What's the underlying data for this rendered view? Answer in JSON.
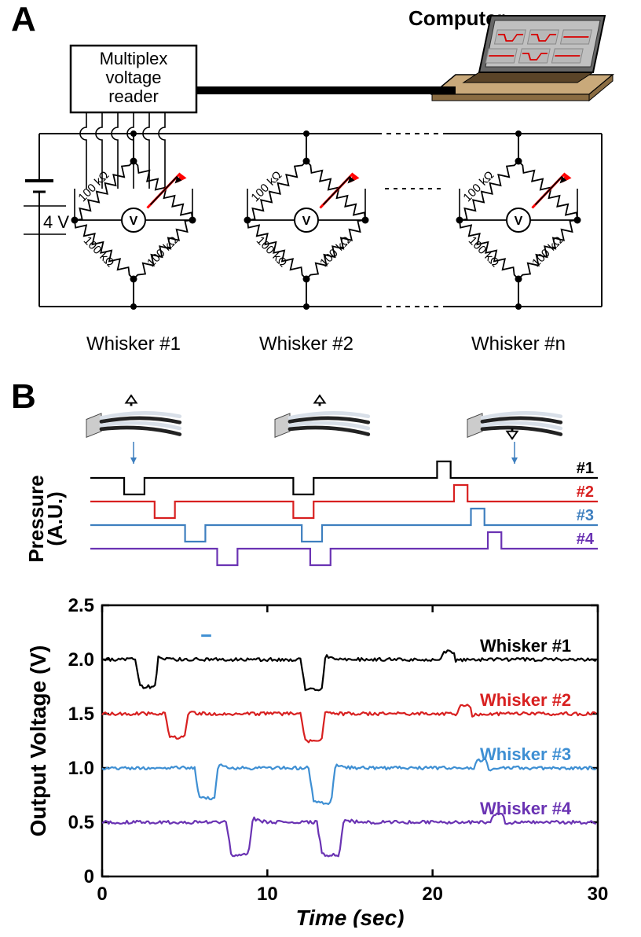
{
  "panelA": {
    "label": "A",
    "reader_label": "Multiplex\nvoltage\nreader",
    "computer_label": "Computer",
    "voltage_source": "4 V",
    "resistor_label": "100 kΩ",
    "voltmeter_label": "V",
    "whisker_labels": [
      "Whisker #1",
      "Whisker #2",
      "Whisker #n"
    ],
    "wire_color": "#000000",
    "arrow_color": "#ff0000",
    "laptop_body": "#c9a97a",
    "laptop_screen_bg": "#c0c0c0",
    "laptop_trace": "#d80000"
  },
  "panelB": {
    "label": "B",
    "pressure_ylabel": "Pressure\n(A.U.)",
    "pressure_series": [
      {
        "name": "#1",
        "color": "#000000",
        "baseline": 0,
        "events": [
          {
            "t": 2,
            "dir": -1,
            "dur": 1.2
          },
          {
            "t": 12,
            "dir": -1,
            "dur": 1.2
          },
          {
            "t": 20.5,
            "dir": 1,
            "dur": 0.8
          }
        ]
      },
      {
        "name": "#2",
        "color": "#d82020",
        "baseline": -1,
        "events": [
          {
            "t": 3.8,
            "dir": -1,
            "dur": 1.2
          },
          {
            "t": 12,
            "dir": -1,
            "dur": 1.2
          },
          {
            "t": 21.5,
            "dir": 1,
            "dur": 0.8
          }
        ]
      },
      {
        "name": "#3",
        "color": "#3e7fbf",
        "baseline": -2,
        "events": [
          {
            "t": 5.6,
            "dir": -1,
            "dur": 1.2
          },
          {
            "t": 12.5,
            "dir": -1,
            "dur": 1.2
          },
          {
            "t": 22.5,
            "dir": 1,
            "dur": 0.8
          }
        ]
      },
      {
        "name": "#4",
        "color": "#6a33b3",
        "baseline": -3,
        "events": [
          {
            "t": 7.5,
            "dir": -1,
            "dur": 1.2
          },
          {
            "t": 13,
            "dir": -1,
            "dur": 1.2
          },
          {
            "t": 23.5,
            "dir": 1,
            "dur": 0.8
          }
        ]
      }
    ],
    "pressure_pulse_height": 0.7,
    "voltage_chart": {
      "xlabel": "Time (sec)",
      "ylabel": "Output Voltage (V)",
      "xlim": [
        0,
        30
      ],
      "ylim": [
        0,
        2.5
      ],
      "xticks": [
        0,
        10,
        20,
        30
      ],
      "yticks": [
        0,
        0.5,
        1.0,
        1.5,
        2.0,
        2.5
      ],
      "ytick_labels": [
        "0",
        "0.5",
        "1.0",
        "1.5",
        "2.0",
        "2.5"
      ],
      "line_width": 2.2,
      "series": [
        {
          "name": "Whisker #1",
          "color": "#000000",
          "baseline": 2.0,
          "events": [
            {
              "t": 2,
              "dir": -1,
              "dur": 1.4,
              "depth": 0.25
            },
            {
              "t": 12,
              "dir": -1,
              "dur": 1.5,
              "depth": 0.28
            },
            {
              "t": 20.5,
              "dir": 1,
              "dur": 0.9,
              "depth": 0.12
            }
          ]
        },
        {
          "name": "Whisker #2",
          "color": "#d82020",
          "baseline": 1.5,
          "events": [
            {
              "t": 3.8,
              "dir": -1,
              "dur": 1.4,
              "depth": 0.22
            },
            {
              "t": 12,
              "dir": -1,
              "dur": 1.5,
              "depth": 0.25
            },
            {
              "t": 21.5,
              "dir": 1,
              "dur": 0.9,
              "depth": 0.12
            }
          ]
        },
        {
          "name": "Whisker #3",
          "color": "#3e8fd3",
          "baseline": 1.0,
          "events": [
            {
              "t": 5.6,
              "dir": -1,
              "dur": 1.4,
              "depth": 0.28
            },
            {
              "t": 12.5,
              "dir": -1,
              "dur": 1.6,
              "depth": 0.32
            },
            {
              "t": 22.5,
              "dir": 1,
              "dur": 0.9,
              "depth": 0.12
            }
          ]
        },
        {
          "name": "Whisker #4",
          "color": "#6a33b3",
          "baseline": 0.5,
          "events": [
            {
              "t": 7.5,
              "dir": -1,
              "dur": 1.6,
              "depth": 0.3
            },
            {
              "t": 13,
              "dir": -1,
              "dur": 1.6,
              "depth": 0.3
            },
            {
              "t": 23.5,
              "dir": 1,
              "dur": 0.9,
              "depth": 0.12
            }
          ]
        }
      ]
    }
  }
}
